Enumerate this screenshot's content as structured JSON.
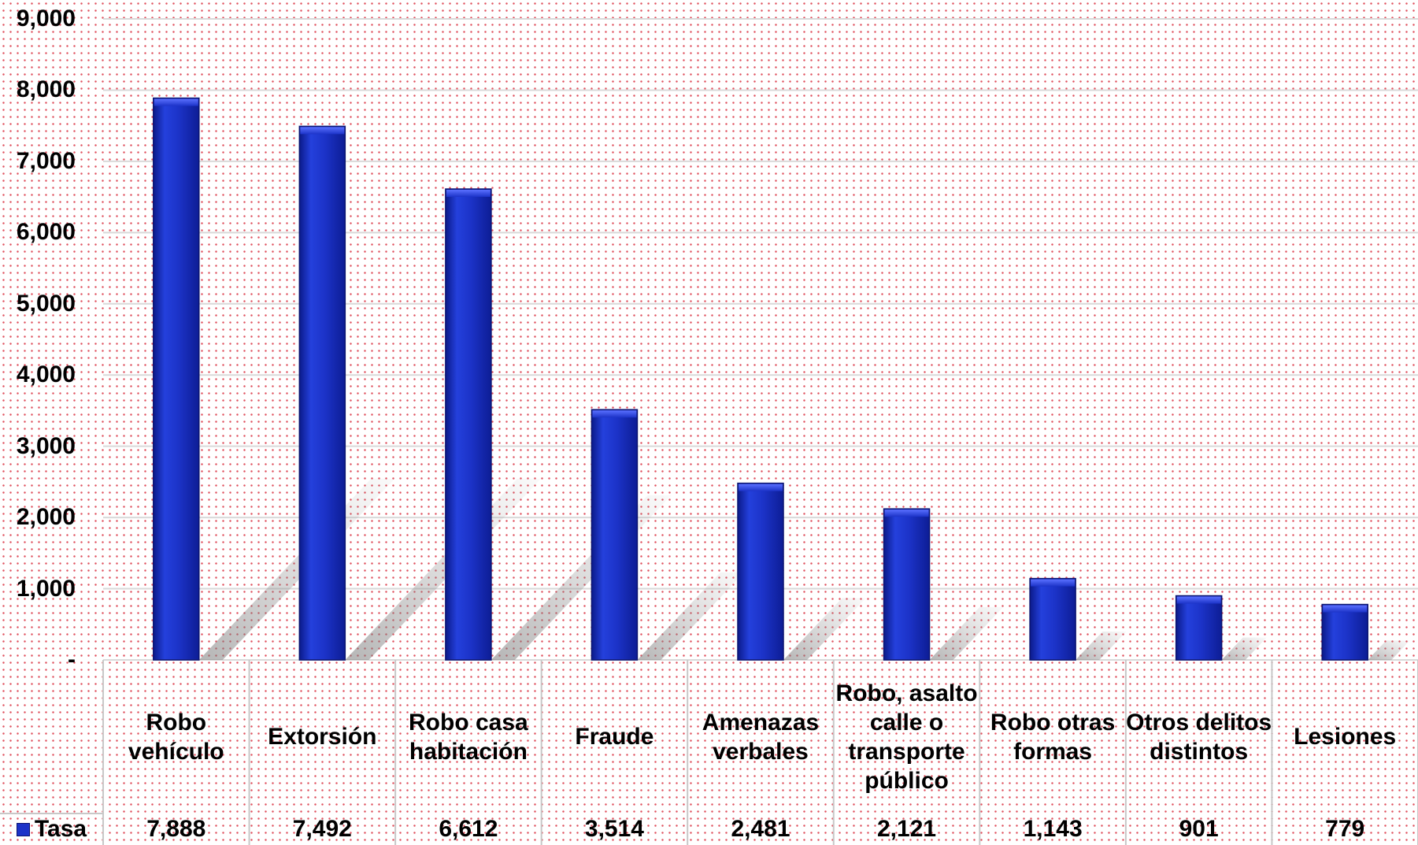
{
  "chart_data": {
    "type": "bar",
    "title": "",
    "xlabel": "",
    "ylabel": "",
    "ylim": [
      0,
      9000
    ],
    "yticks": [
      "-",
      "1,000",
      "2,000",
      "3,000",
      "4,000",
      "5,000",
      "6,000",
      "7,000",
      "8,000",
      "9,000"
    ],
    "categories": [
      "Robo vehículo",
      "Extorsión",
      "Robo casa habitación",
      "Fraude",
      "Amenazas verbales",
      "Robo, asalto calle o transporte público",
      "Robo otras formas",
      "Otros delitos distintos",
      "Lesiones"
    ],
    "series": [
      {
        "name": "Tasa",
        "values": [
          7888,
          7492,
          6612,
          3514,
          2481,
          2121,
          1143,
          901,
          779
        ],
        "labels": [
          "7,888",
          "7,492",
          "6,612",
          "3,514",
          "2,481",
          "2,121",
          "1,143",
          "901",
          "779"
        ],
        "color": "#1c33c8"
      }
    ],
    "grid": true,
    "legend": "data-table-left",
    "colors": {
      "bar": "#1c33c8",
      "bar_edge": "#0a1470",
      "grid": "#d9d9d9",
      "table_line": "#c8c8c8"
    }
  }
}
